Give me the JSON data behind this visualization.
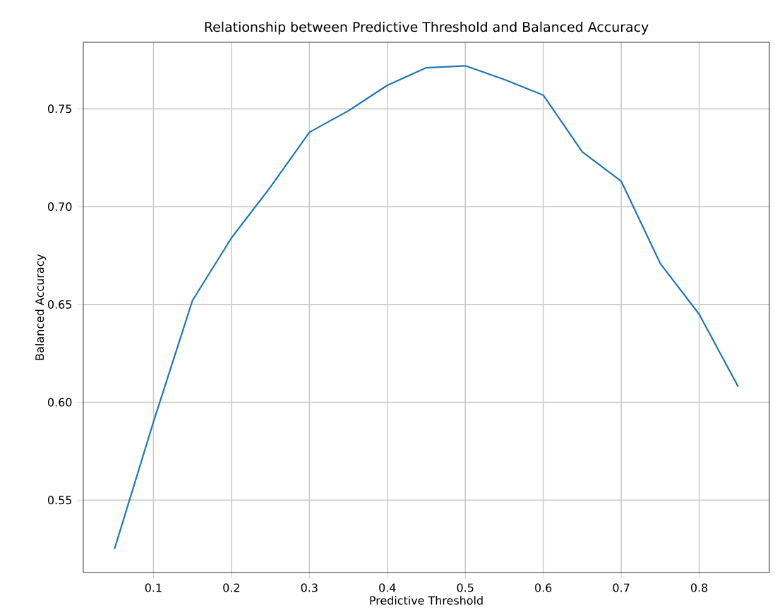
{
  "chart_data": {
    "type": "line",
    "title": "Relationship between Predictive Threshold and Balanced Accuracy",
    "xlabel": "Predictive Threshold",
    "ylabel": "Balanced Accuracy",
    "x": [
      0.05,
      0.1,
      0.15,
      0.2,
      0.25,
      0.3,
      0.35,
      0.4,
      0.45,
      0.5,
      0.55,
      0.6,
      0.65,
      0.7,
      0.75,
      0.8,
      0.85
    ],
    "series": [
      {
        "color": "#1f77b4",
        "values": [
          0.525,
          0.59,
          0.652,
          0.684,
          0.71,
          0.738,
          0.749,
          0.762,
          0.771,
          0.772,
          0.765,
          0.757,
          0.728,
          0.713,
          0.671,
          0.645,
          0.608
        ]
      }
    ],
    "xlim": [
      0.01,
      0.89
    ],
    "ylim": [
      0.513,
      0.784
    ],
    "xticks": [
      0.1,
      0.2,
      0.3,
      0.4,
      0.5,
      0.6,
      0.7,
      0.8
    ],
    "yticks": [
      0.55,
      {
        "value": 0.6,
        "label": "0.60"
      },
      0.65,
      {
        "value": 0.7,
        "label": "0.70"
      },
      0.75
    ],
    "grid": true
  }
}
